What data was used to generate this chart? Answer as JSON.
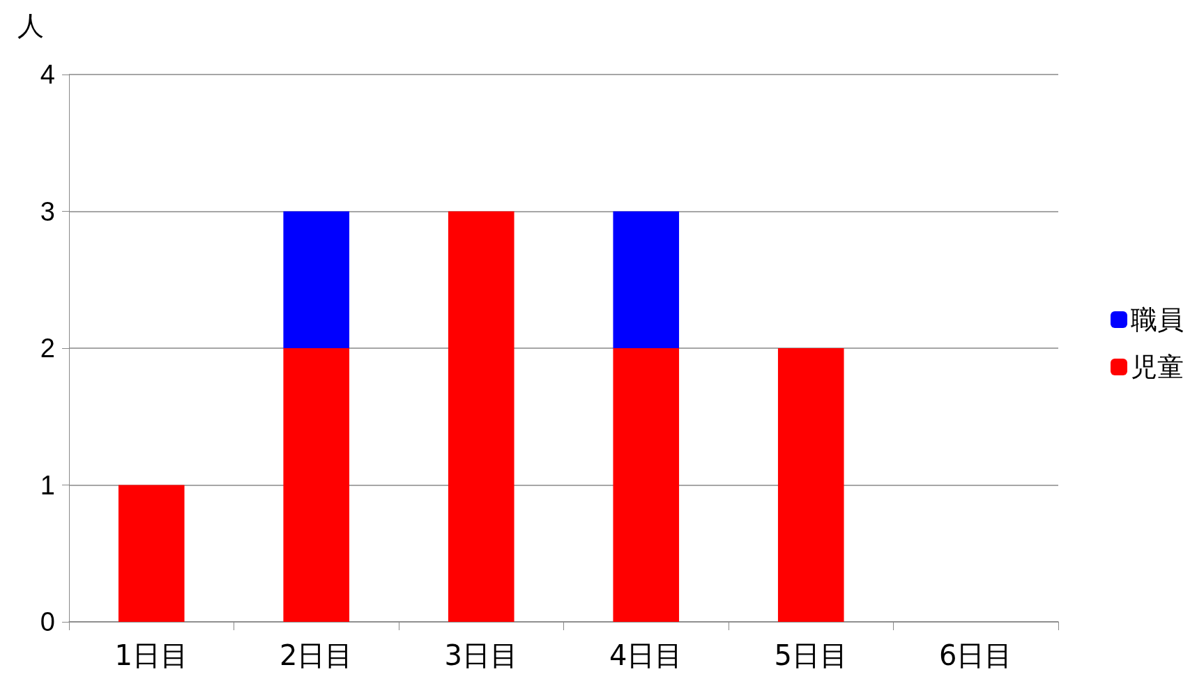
{
  "chart_data": {
    "type": "bar",
    "ylabel": "人",
    "stacked": true,
    "categories": [
      "1日目",
      "2日目",
      "3日目",
      "4日目",
      "5日目",
      "6日目"
    ],
    "series": [
      {
        "name": "児童",
        "color": "#ff0000",
        "values": [
          1,
          2,
          3,
          2,
          2,
          0
        ]
      },
      {
        "name": "職員",
        "color": "#0000ff",
        "values": [
          0,
          1,
          0,
          1,
          0,
          0
        ]
      }
    ],
    "ylim": [
      0,
      4
    ],
    "yticks": [
      0,
      1,
      2,
      3,
      4
    ],
    "grid": "y",
    "legend": "right"
  }
}
